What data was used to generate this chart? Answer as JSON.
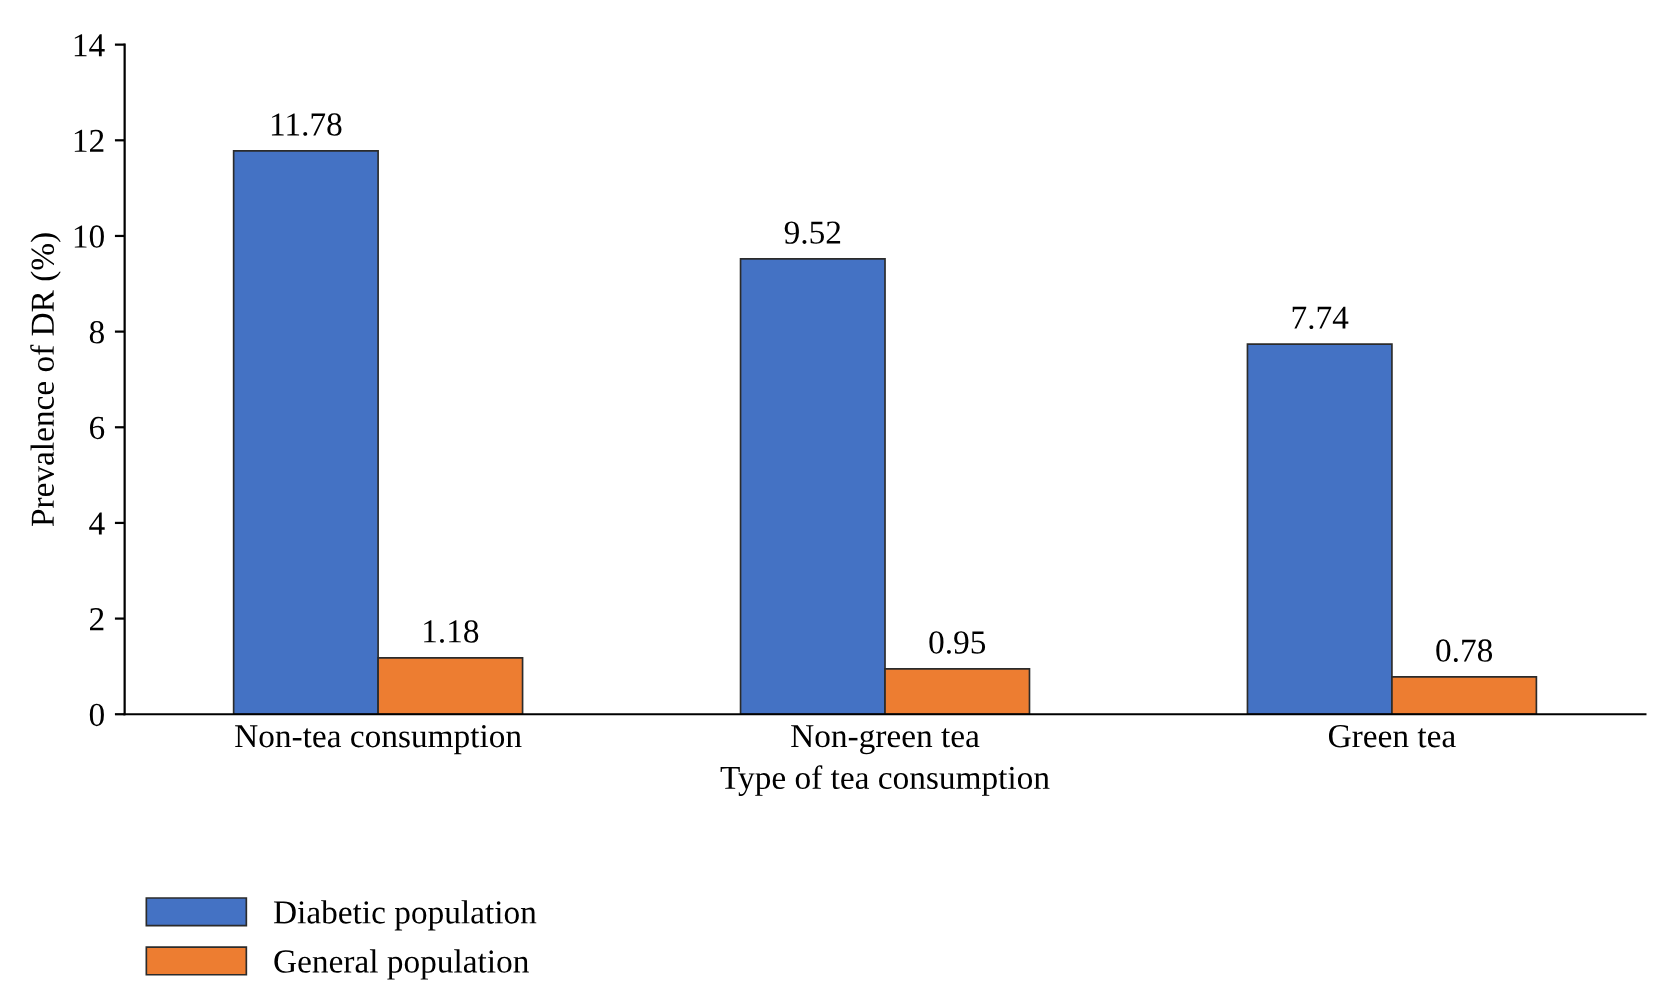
{
  "chart_data": {
    "type": "bar",
    "xlabel": "Type of tea consumption",
    "ylabel": "Prevalence of DR (%)",
    "categories": [
      "Non-tea consumption",
      "Non-green tea",
      "Green tea"
    ],
    "series": [
      {
        "name": "Diabetic population",
        "color": "#4472c4",
        "values": [
          11.78,
          9.52,
          7.74
        ]
      },
      {
        "name": "General population",
        "color": "#ed7d31",
        "values": [
          1.18,
          0.95,
          0.78
        ]
      }
    ],
    "ylim": [
      0,
      14
    ],
    "yticks": [
      0,
      2,
      4,
      6,
      8,
      10,
      12,
      14
    ],
    "grid": false,
    "legend": "bottom left",
    "data_labels": true
  }
}
